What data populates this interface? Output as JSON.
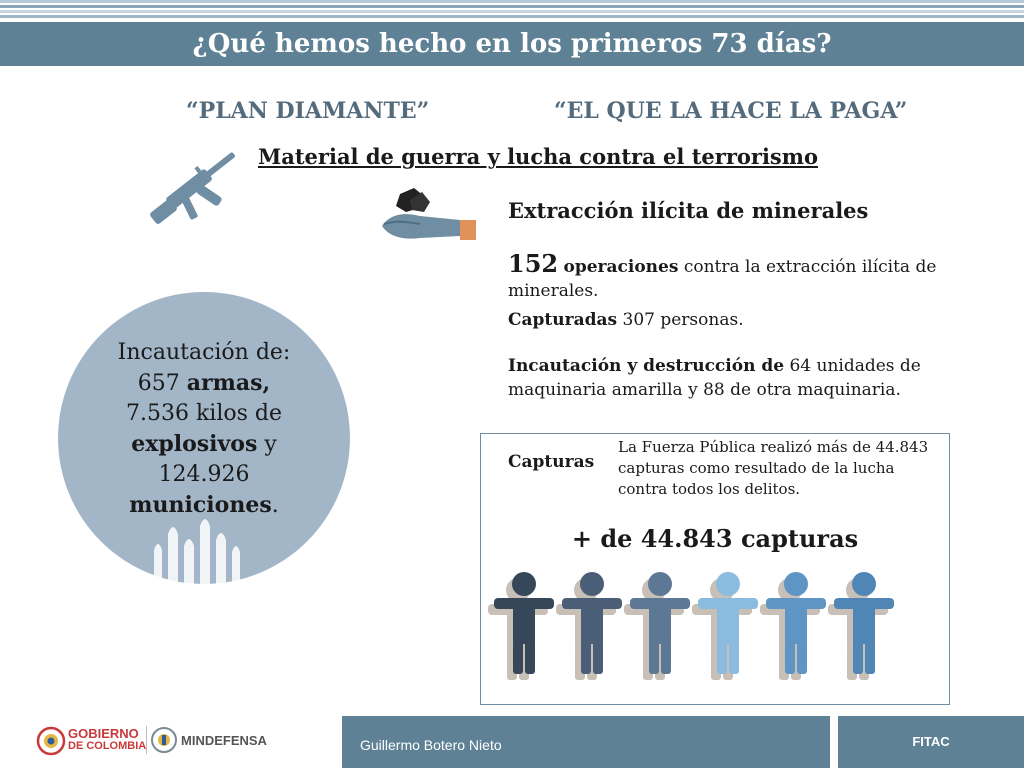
{
  "header": {
    "title": "¿Qué hemos hecho en los primeros 73 días?"
  },
  "plans": {
    "left": "“PLAN DIAMANTE”",
    "right": "“EL QUE LA HACE LA PAGA”"
  },
  "section": {
    "title": "Material de guerra y lucha contra el terrorismo"
  },
  "seizure": {
    "line1": "Incautación de:",
    "weapons_count": "657",
    "weapons_label": "armas,",
    "explosives_prefix": "7.536 kilos de",
    "explosives_label": "explosivos",
    "explosives_suffix": "y",
    "munitions_count": "124.926",
    "munitions_label": "municiones",
    "munitions_suffix": "."
  },
  "minerals": {
    "title": "Extracción ilícita de minerales",
    "operations_count": "152",
    "operations_label": "operaciones",
    "operations_text": "contra la extracción ilícita de minerales.",
    "captured_label": "Capturadas",
    "captured_text": "307 personas.",
    "destruction_label": "Incautación y destrucción de",
    "destruction_text": "64 unidades de maquinaria amarilla y 88 de otra maquinaria."
  },
  "captures": {
    "label": "Capturas",
    "description": "La Fuerza Pública realizó más de 44.843 capturas como resultado de la lucha contra todos los delitos.",
    "total": "+ de 44.843 capturas"
  },
  "footer": {
    "gov_logo_line1": "GOBIERNO",
    "gov_logo_line2": "DE COLOMBIA",
    "defense_logo": "MINDEFENSA",
    "author": "Guillermo Botero Nieto",
    "tag": "FITAC"
  },
  "colors": {
    "bar": "#5f8196",
    "circle": "#a3b6c8",
    "icon": "#6f8ea3",
    "people": [
      "#37475a",
      "#4a5e77",
      "#5d7894",
      "#8bbcdf",
      "#5e95c4",
      "#4f86b6"
    ],
    "people_shadow": "#c8bfb6"
  }
}
